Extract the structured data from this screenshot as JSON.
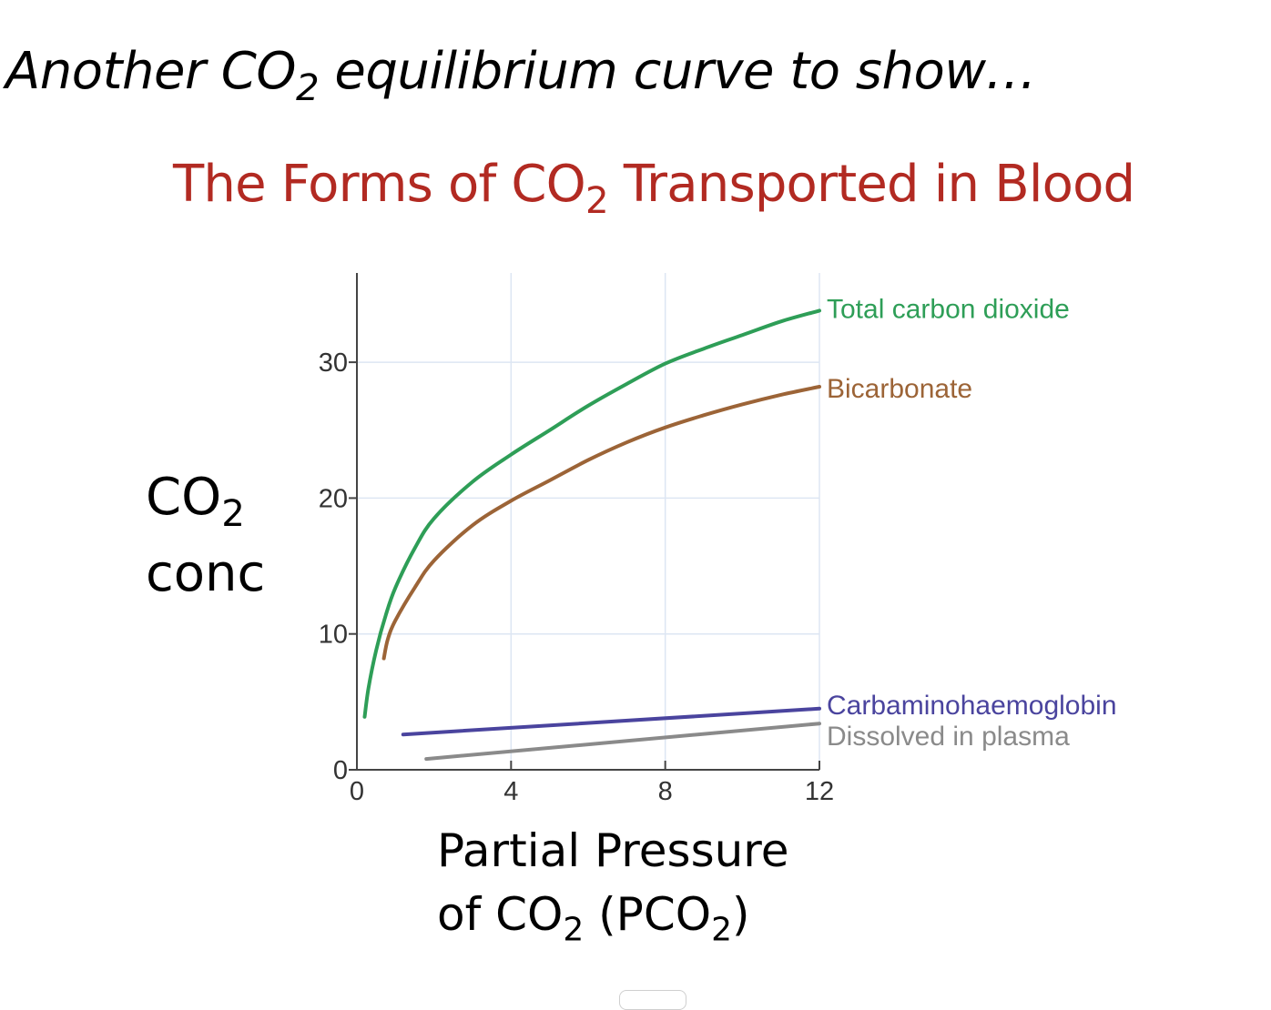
{
  "slide": {
    "headline": {
      "before": "Another CO",
      "sub": "2",
      "after": " equilibrium curve to show…"
    }
  },
  "chart_data": {
    "type": "line",
    "title": {
      "before": "The Forms of CO",
      "sub": "2",
      "after": " Transported in Blood"
    },
    "ylabel": {
      "line1": "CO",
      "line1_sub": "2",
      "line2": "conc"
    },
    "xlabel": {
      "line1": "Partial Pressure",
      "line2_a": "of CO",
      "line2_sub_a": "2",
      "line2_b": " (PCO",
      "line2_sub_b": "2",
      "line2_c": ")"
    },
    "xlim": [
      0,
      12
    ],
    "ylim": [
      0,
      36
    ],
    "x_ticks": [
      "0",
      "4",
      "8",
      "12"
    ],
    "y_ticks": [
      "0",
      "10",
      "20",
      "30"
    ],
    "x_tick_values": [
      0,
      4,
      8,
      12
    ],
    "y_tick_values": [
      0,
      10,
      20,
      30
    ],
    "grid": true,
    "series": [
      {
        "name": "Total carbon dioxide",
        "color": "#2e9e57",
        "points": [
          [
            0.2,
            3.9
          ],
          [
            0.3,
            6.0
          ],
          [
            0.5,
            8.8
          ],
          [
            0.75,
            11.4
          ],
          [
            1.0,
            13.4
          ],
          [
            1.5,
            16.3
          ],
          [
            2.0,
            18.5
          ],
          [
            3.0,
            21.2
          ],
          [
            4.0,
            23.2
          ],
          [
            5.0,
            25.0
          ],
          [
            6.0,
            26.8
          ],
          [
            7.0,
            28.4
          ],
          [
            8.0,
            29.9
          ],
          [
            9.0,
            31.0
          ],
          [
            10.0,
            32.0
          ],
          [
            11.0,
            33.0
          ],
          [
            12.0,
            33.8
          ]
        ]
      },
      {
        "name": "Bicarbonate",
        "color": "#9c6437",
        "points": [
          [
            0.7,
            8.2
          ],
          [
            0.8,
            9.6
          ],
          [
            1.0,
            11.0
          ],
          [
            1.5,
            13.4
          ],
          [
            2.0,
            15.4
          ],
          [
            3.0,
            18.0
          ],
          [
            4.0,
            19.8
          ],
          [
            5.0,
            21.3
          ],
          [
            6.0,
            22.8
          ],
          [
            7.0,
            24.1
          ],
          [
            8.0,
            25.2
          ],
          [
            9.0,
            26.1
          ],
          [
            10.0,
            26.9
          ],
          [
            11.0,
            27.6
          ],
          [
            12.0,
            28.2
          ]
        ]
      },
      {
        "name": "Carbaminohaemoglobin",
        "color": "#4a449e",
        "points": [
          [
            1.2,
            2.6
          ],
          [
            12.0,
            4.5
          ]
        ]
      },
      {
        "name": "Dissolved in plasma",
        "color": "#8a8a8a",
        "points": [
          [
            1.8,
            0.8
          ],
          [
            12.0,
            3.4
          ]
        ]
      }
    ],
    "legend": "labels at line ends, right"
  }
}
